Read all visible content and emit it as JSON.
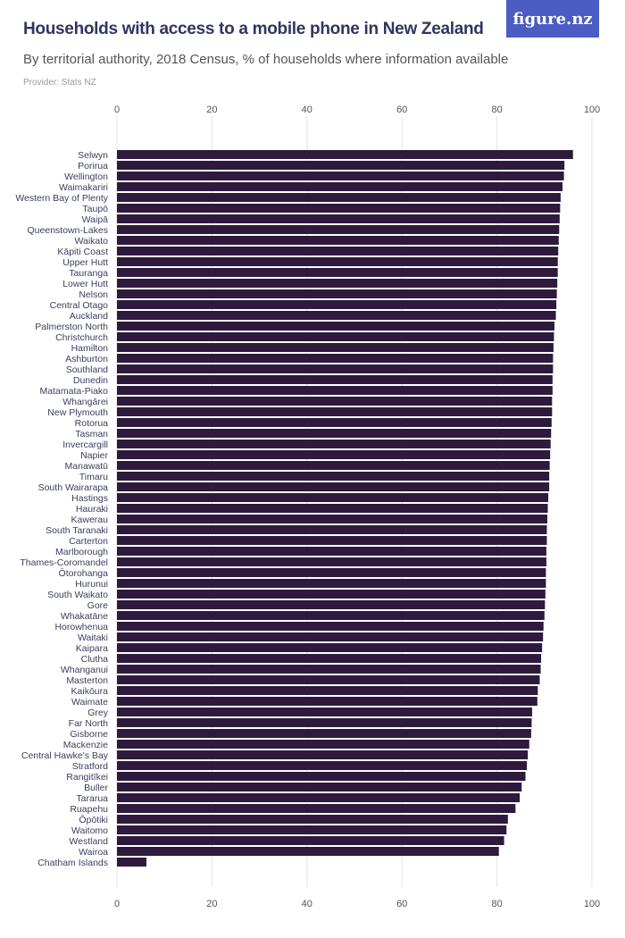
{
  "header": {
    "title": "Households with access to a mobile phone in New Zealand",
    "subtitle": "By territorial authority, 2018 Census, % of households where information available",
    "provider": "Provider: Stats NZ",
    "logo_text": "figure.nz"
  },
  "colors": {
    "bar": "#2e1a3c",
    "logo_bg": "#4b5dc4",
    "title": "#2e3660"
  },
  "chart_data": {
    "type": "bar",
    "orientation": "horizontal",
    "title": "Households with access to a mobile phone in New Zealand",
    "subtitle": "By territorial authority, 2018 Census, % of households where information available",
    "xlim": [
      0,
      100
    ],
    "xticks": [
      0,
      20,
      40,
      60,
      80,
      100
    ],
    "grid": true,
    "categories": [
      "Selwyn",
      "Porirua",
      "Wellington",
      "Waimakariri",
      "Western Bay of Plenty",
      "Taupō",
      "Waipā",
      "Queenstown-Lakes",
      "Waikato",
      "Kāpiti Coast",
      "Upper Hutt",
      "Tauranga",
      "Lower Hutt",
      "Nelson",
      "Central Otago",
      "Auckland",
      "Palmerston North",
      "Christchurch",
      "Hamilton",
      "Ashburton",
      "Southland",
      "Dunedin",
      "Matamata-Piako",
      "Whangārei",
      "New Plymouth",
      "Rotorua",
      "Tasman",
      "Invercargill",
      "Napier",
      "Manawatū",
      "Timaru",
      "South Wairarapa",
      "Hastings",
      "Hauraki",
      "Kawerau",
      "South Taranaki",
      "Carterton",
      "Marlborough",
      "Thames-Coromandel",
      "Ōtorohanga",
      "Hurunui",
      "South Waikato",
      "Gore",
      "Whakatāne",
      "Horowhenua",
      "Waitaki",
      "Kaipara",
      "Clutha",
      "Whanganui",
      "Masterton",
      "Kaikōura",
      "Waimate",
      "Grey",
      "Far North",
      "Gisborne",
      "Mackenzie",
      "Central Hawke's Bay",
      "Stratford",
      "Rangitīkei",
      "Buller",
      "Tararua",
      "Ruapehu",
      "Ōpōtiki",
      "Waitomo",
      "Westland",
      "Wairoa",
      "Chatham Islands"
    ],
    "values": [
      96.0,
      94.2,
      94.1,
      93.8,
      93.4,
      93.3,
      93.2,
      93.1,
      93.0,
      92.9,
      92.8,
      92.8,
      92.7,
      92.6,
      92.5,
      92.4,
      92.1,
      92.0,
      91.9,
      91.8,
      91.8,
      91.7,
      91.7,
      91.6,
      91.6,
      91.5,
      91.4,
      91.3,
      91.2,
      91.1,
      91.0,
      91.0,
      90.8,
      90.7,
      90.6,
      90.5,
      90.5,
      90.4,
      90.4,
      90.3,
      90.3,
      90.2,
      90.1,
      90.0,
      89.8,
      89.7,
      89.5,
      89.3,
      89.2,
      89.0,
      88.6,
      88.5,
      87.4,
      87.3,
      87.2,
      86.8,
      86.5,
      86.3,
      86.0,
      85.2,
      84.8,
      83.9,
      82.3,
      82.0,
      81.5,
      80.4,
      6.2
    ]
  }
}
